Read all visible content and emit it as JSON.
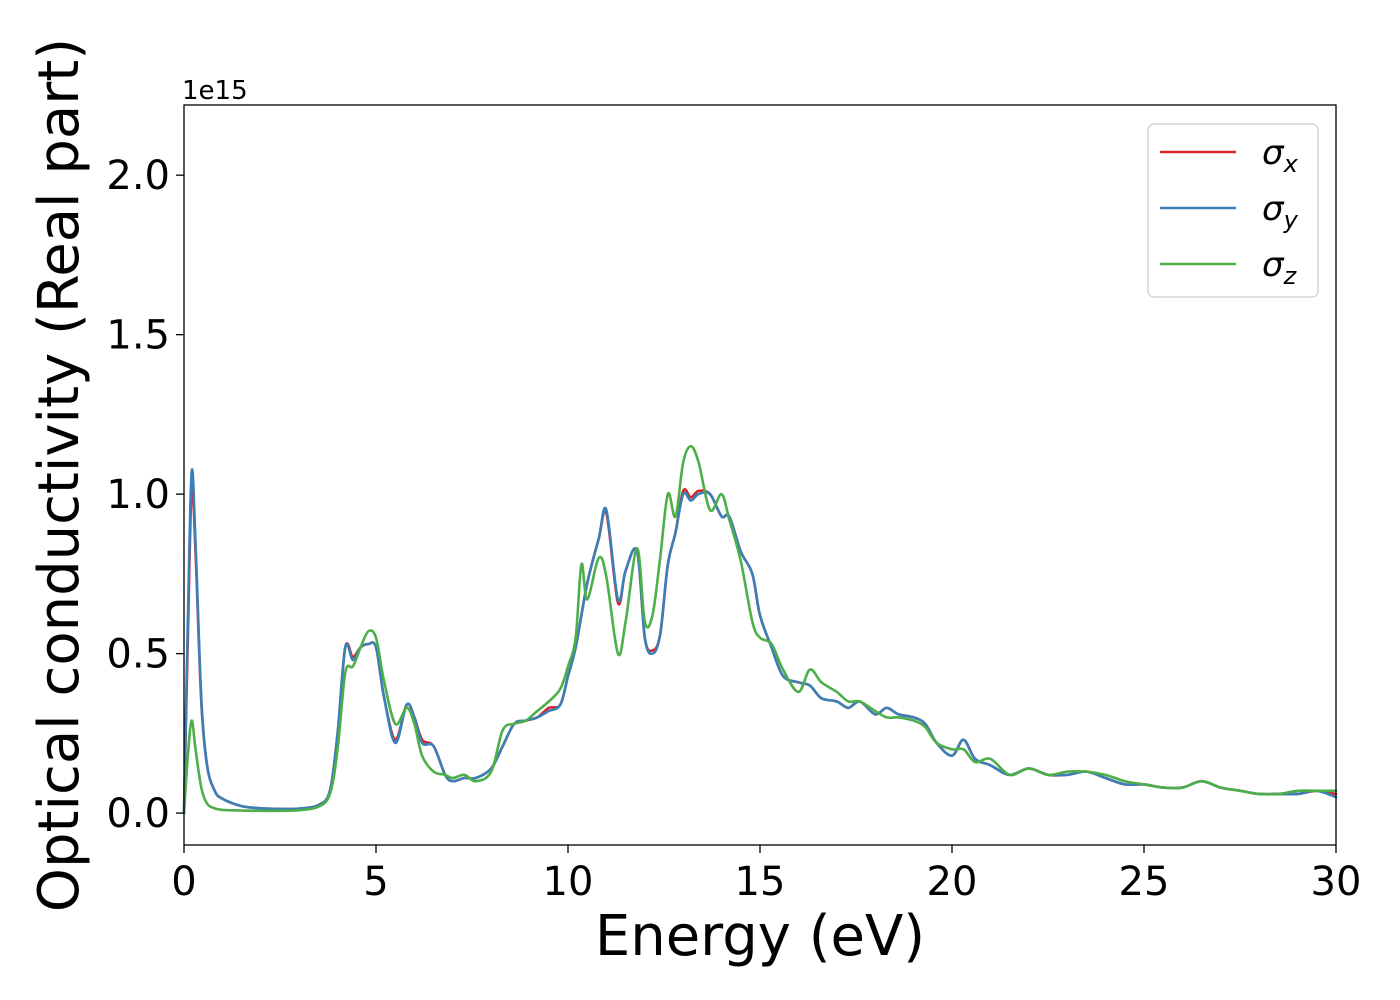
{
  "chart_data": {
    "type": "line",
    "xlabel": "Energy (eV)",
    "ylabel": "Optical conductivity (Real part)",
    "y_offset_label": "1e15",
    "xlim": [
      0,
      30
    ],
    "ylim": [
      -0.1,
      2.22
    ],
    "x_ticks": [
      0,
      5,
      10,
      15,
      20,
      25,
      30
    ],
    "x_tick_labels": [
      "0",
      "5",
      "10",
      "15",
      "20",
      "25",
      "30"
    ],
    "y_ticks": [
      0.0,
      0.5,
      1.0,
      1.5,
      2.0
    ],
    "y_tick_labels": [
      "0.0",
      "0.5",
      "1.0",
      "1.5",
      "2.0"
    ],
    "grid": false,
    "legend_position": "top-right",
    "series": [
      {
        "name": "σx",
        "legend_symbol": "σ",
        "legend_subscript": "x",
        "color": "#d62728",
        "x": [
          0.0,
          0.1,
          0.2,
          0.3,
          0.45,
          0.6,
          0.8,
          1.0,
          1.5,
          2.0,
          2.5,
          3.0,
          3.5,
          3.8,
          4.0,
          4.2,
          4.4,
          4.6,
          4.8,
          5.0,
          5.2,
          5.5,
          5.8,
          6.0,
          6.2,
          6.5,
          6.8,
          7.0,
          7.3,
          7.6,
          8.0,
          8.3,
          8.6,
          8.9,
          9.2,
          9.5,
          9.8,
          10.0,
          10.2,
          10.5,
          10.8,
          11.0,
          11.3,
          11.5,
          11.8,
          12.0,
          12.2,
          12.4,
          12.6,
          12.8,
          13.0,
          13.2,
          13.4,
          13.7,
          14.0,
          14.2,
          14.5,
          14.8,
          15.0,
          15.3,
          15.6,
          16.0,
          16.3,
          16.6,
          17.0,
          17.3,
          17.6,
          18.0,
          18.3,
          18.6,
          19.0,
          19.3,
          19.6,
          20.0,
          20.3,
          20.6,
          21.0,
          21.5,
          22.0,
          22.5,
          23.0,
          23.5,
          24.0,
          24.5,
          25.0,
          25.5,
          26.0,
          26.5,
          27.0,
          27.5,
          28.0,
          28.5,
          29.0,
          29.5,
          30.0
        ],
        "values": [
          0.0,
          0.55,
          1.02,
          0.82,
          0.35,
          0.15,
          0.07,
          0.045,
          0.022,
          0.015,
          0.013,
          0.014,
          0.025,
          0.07,
          0.25,
          0.52,
          0.49,
          0.52,
          0.53,
          0.52,
          0.37,
          0.23,
          0.34,
          0.3,
          0.23,
          0.21,
          0.12,
          0.1,
          0.11,
          0.11,
          0.14,
          0.21,
          0.28,
          0.29,
          0.3,
          0.33,
          0.34,
          0.43,
          0.52,
          0.72,
          0.86,
          0.94,
          0.66,
          0.76,
          0.82,
          0.55,
          0.51,
          0.56,
          0.78,
          0.88,
          1.01,
          0.99,
          1.01,
          1.0,
          0.93,
          0.93,
          0.82,
          0.75,
          0.62,
          0.52,
          0.43,
          0.41,
          0.4,
          0.36,
          0.35,
          0.33,
          0.35,
          0.31,
          0.33,
          0.31,
          0.3,
          0.28,
          0.22,
          0.18,
          0.23,
          0.17,
          0.15,
          0.12,
          0.14,
          0.12,
          0.12,
          0.13,
          0.11,
          0.09,
          0.09,
          0.08,
          0.08,
          0.1,
          0.08,
          0.07,
          0.06,
          0.06,
          0.06,
          0.07,
          0.06
        ]
      },
      {
        "name": "σy",
        "legend_symbol": "σ",
        "legend_subscript": "y",
        "color": "#3a7fb8",
        "x": [
          0.0,
          0.1,
          0.2,
          0.3,
          0.45,
          0.6,
          0.8,
          1.0,
          1.5,
          2.0,
          2.5,
          3.0,
          3.5,
          3.8,
          4.0,
          4.2,
          4.4,
          4.6,
          4.8,
          5.0,
          5.2,
          5.5,
          5.8,
          6.0,
          6.2,
          6.5,
          6.8,
          7.0,
          7.3,
          7.6,
          8.0,
          8.3,
          8.6,
          8.9,
          9.2,
          9.5,
          9.8,
          10.0,
          10.2,
          10.5,
          10.8,
          11.0,
          11.3,
          11.5,
          11.8,
          12.0,
          12.2,
          12.4,
          12.6,
          12.8,
          13.0,
          13.2,
          13.4,
          13.7,
          14.0,
          14.2,
          14.5,
          14.8,
          15.0,
          15.3,
          15.6,
          16.0,
          16.3,
          16.6,
          17.0,
          17.3,
          17.6,
          18.0,
          18.3,
          18.6,
          19.0,
          19.3,
          19.6,
          20.0,
          20.3,
          20.6,
          21.0,
          21.5,
          22.0,
          22.5,
          23.0,
          23.5,
          24.0,
          24.5,
          25.0,
          25.5,
          26.0,
          26.5,
          27.0,
          27.5,
          28.0,
          28.5,
          29.0,
          29.5,
          30.0
        ],
        "values": [
          0.0,
          0.6,
          1.07,
          0.85,
          0.36,
          0.15,
          0.07,
          0.045,
          0.022,
          0.015,
          0.013,
          0.014,
          0.025,
          0.07,
          0.25,
          0.52,
          0.48,
          0.52,
          0.53,
          0.52,
          0.37,
          0.22,
          0.34,
          0.3,
          0.22,
          0.21,
          0.12,
          0.1,
          0.11,
          0.11,
          0.14,
          0.21,
          0.28,
          0.29,
          0.3,
          0.32,
          0.34,
          0.43,
          0.52,
          0.72,
          0.86,
          0.95,
          0.67,
          0.76,
          0.82,
          0.55,
          0.5,
          0.56,
          0.78,
          0.88,
          1.0,
          0.98,
          1.0,
          1.0,
          0.93,
          0.93,
          0.82,
          0.75,
          0.62,
          0.52,
          0.43,
          0.41,
          0.4,
          0.36,
          0.35,
          0.33,
          0.35,
          0.31,
          0.33,
          0.31,
          0.3,
          0.28,
          0.22,
          0.18,
          0.23,
          0.17,
          0.15,
          0.12,
          0.14,
          0.12,
          0.12,
          0.13,
          0.11,
          0.09,
          0.09,
          0.08,
          0.08,
          0.1,
          0.08,
          0.07,
          0.06,
          0.06,
          0.06,
          0.07,
          0.05
        ]
      },
      {
        "name": "σz",
        "legend_symbol": "σ",
        "legend_subscript": "z",
        "color": "#4daf4a",
        "x": [
          0.0,
          0.1,
          0.2,
          0.3,
          0.45,
          0.6,
          0.8,
          1.0,
          1.5,
          2.0,
          2.5,
          3.0,
          3.5,
          3.8,
          4.0,
          4.2,
          4.4,
          4.6,
          4.8,
          5.0,
          5.2,
          5.5,
          5.8,
          6.0,
          6.2,
          6.5,
          6.8,
          7.0,
          7.3,
          7.6,
          8.0,
          8.3,
          8.6,
          8.9,
          9.2,
          9.5,
          9.8,
          10.0,
          10.2,
          10.35,
          10.5,
          10.8,
          11.0,
          11.3,
          11.5,
          11.8,
          12.0,
          12.2,
          12.4,
          12.6,
          12.8,
          13.0,
          13.2,
          13.4,
          13.7,
          14.0,
          14.2,
          14.5,
          14.8,
          15.0,
          15.3,
          15.6,
          16.0,
          16.3,
          16.6,
          17.0,
          17.3,
          17.6,
          18.0,
          18.3,
          18.6,
          19.0,
          19.3,
          19.6,
          20.0,
          20.3,
          20.6,
          21.0,
          21.5,
          22.0,
          22.5,
          23.0,
          23.5,
          24.0,
          24.5,
          25.0,
          25.5,
          26.0,
          26.5,
          27.0,
          27.5,
          28.0,
          28.5,
          29.0,
          29.5,
          30.0
        ],
        "values": [
          0.0,
          0.18,
          0.29,
          0.2,
          0.08,
          0.03,
          0.015,
          0.01,
          0.008,
          0.007,
          0.007,
          0.009,
          0.02,
          0.06,
          0.2,
          0.44,
          0.46,
          0.52,
          0.57,
          0.55,
          0.42,
          0.28,
          0.33,
          0.28,
          0.18,
          0.13,
          0.12,
          0.11,
          0.12,
          0.1,
          0.13,
          0.26,
          0.28,
          0.29,
          0.32,
          0.35,
          0.39,
          0.46,
          0.55,
          0.78,
          0.67,
          0.8,
          0.74,
          0.5,
          0.6,
          0.83,
          0.6,
          0.62,
          0.8,
          1.0,
          0.93,
          1.1,
          1.15,
          1.1,
          0.95,
          1.0,
          0.92,
          0.79,
          0.6,
          0.55,
          0.53,
          0.45,
          0.38,
          0.45,
          0.41,
          0.38,
          0.35,
          0.35,
          0.32,
          0.3,
          0.3,
          0.29,
          0.27,
          0.22,
          0.2,
          0.2,
          0.16,
          0.17,
          0.12,
          0.14,
          0.12,
          0.13,
          0.13,
          0.12,
          0.1,
          0.09,
          0.08,
          0.08,
          0.1,
          0.08,
          0.07,
          0.06,
          0.06,
          0.07,
          0.07,
          0.07
        ]
      }
    ]
  }
}
